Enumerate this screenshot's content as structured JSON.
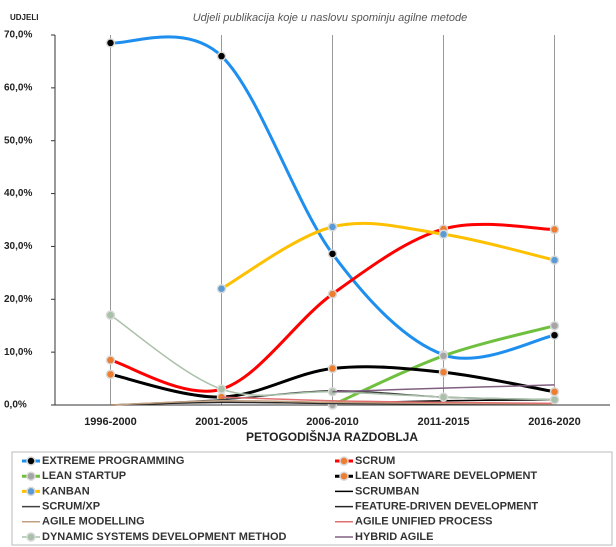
{
  "chart_data": {
    "type": "line",
    "title": "Udjeli publikacija koje u naslovu spominju agilne metode",
    "y_label": "UDJELI",
    "x_label": "PETOGODIŠNJA RAZDOBLJA",
    "categories": [
      "1996-2000",
      "2001-2005",
      "2006-2010",
      "2011-2015",
      "2016-2020"
    ],
    "ylim": [
      0,
      70
    ],
    "yticks": [
      {
        "value": 0,
        "label": "0,0%"
      },
      {
        "value": 10,
        "label": "10,0%"
      },
      {
        "value": 20,
        "label": "20,0%"
      },
      {
        "value": 30,
        "label": "30,0%"
      },
      {
        "value": 40,
        "label": "40,0%"
      },
      {
        "value": 50,
        "label": "50,0%"
      },
      {
        "value": 60,
        "label": "60,0%"
      },
      {
        "value": 70,
        "label": "70,0%"
      }
    ],
    "grid": true,
    "smooth": true,
    "series": [
      {
        "name": "EXTREME PROGRAMMING",
        "color": "#1e8fef",
        "marker_color": "#000000",
        "values": [
          68.5,
          66,
          28.6,
          9.5,
          13.2
        ]
      },
      {
        "name": "SCRUM",
        "color": "#ff0000",
        "marker_color": "#ed7d31",
        "values": [
          8.5,
          3,
          21,
          33.3,
          33.2
        ]
      },
      {
        "name": "LEAN STARTUP",
        "color": "#70c040",
        "marker_color": "#a5a5a5",
        "values": [
          null,
          null,
          0,
          9.3,
          15
        ]
      },
      {
        "name": "LEAN SOFTWARE DEVELOPMENT",
        "color": "#000000",
        "marker_color": "#ed7d31",
        "values": [
          5.8,
          1.5,
          6.9,
          6.2,
          2.5
        ]
      },
      {
        "name": "KANBAN",
        "color": "#ffc000",
        "marker_color": "#5b9bd5",
        "values": [
          null,
          22,
          33.7,
          32.3,
          27.4
        ]
      },
      {
        "name": "SCRUMBAN",
        "color": "#000000",
        "values": [
          null,
          null,
          0.3,
          0.8,
          1.0
        ]
      },
      {
        "name": "SCRUM/XP",
        "color": "#404040",
        "values": [
          0,
          1,
          2.7,
          1.5,
          1
        ]
      },
      {
        "name": "FEATURE-DRIVEN DEVELOPMENT",
        "color": "#262626",
        "values": [
          0,
          0.5,
          0.3,
          0.2,
          0.1
        ]
      },
      {
        "name": "AGILE MODELLING",
        "color": "#c0a080",
        "values": [
          0,
          0.8,
          0.5,
          0.3,
          0.2
        ]
      },
      {
        "name": "AGILE UNIFIED PROCESS",
        "color": "#e07070",
        "values": [
          null,
          1.5,
          0.8,
          0.5,
          0.3
        ]
      },
      {
        "name": "DYNAMIC SYSTEMS DEVELOPMENT METHOD",
        "color": "#a9c0a9",
        "marker_color": "#a9c0a9",
        "values": [
          17,
          3,
          2.5,
          1.5,
          1
        ]
      },
      {
        "name": "HYBRID AGILE",
        "color": "#806080",
        "values": [
          null,
          null,
          2.5,
          3.2,
          3.8
        ]
      }
    ]
  }
}
